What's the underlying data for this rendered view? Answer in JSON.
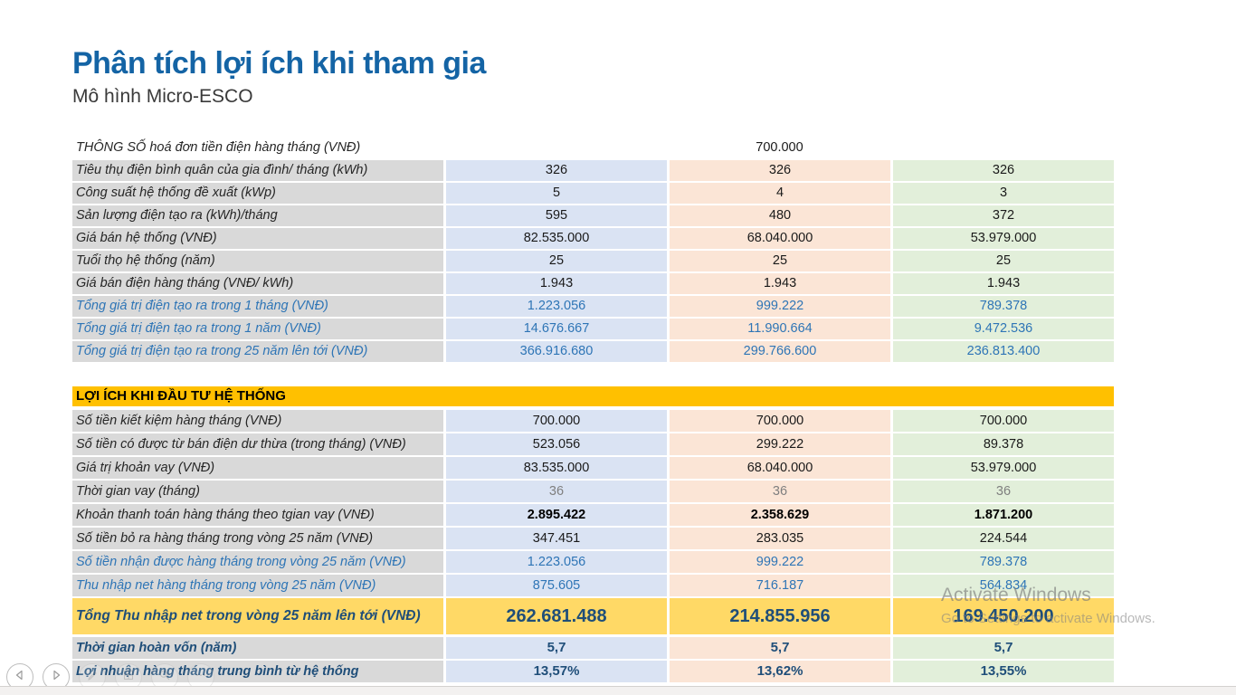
{
  "slide": {
    "title": "Phân tích lợi ích khi tham gia",
    "subtitle": "Mô hình Micro-ESCO"
  },
  "colors": {
    "title_blue": "#1464a5",
    "label_gray_bg": "#d9d9d9",
    "column1_blue_bg": "#dae3f3",
    "column2_orange_bg": "#fbe5d6",
    "column3_green_bg": "#e2efda",
    "section_header_bg": "#ffc000",
    "total_row_bg": "#ffd966",
    "blue_text": "#2e75b6",
    "navy_text": "#1f4e79",
    "gray_text": "#7f7f7f"
  },
  "table": {
    "rows": [
      {
        "type": "merged",
        "label": "THÔNG SỐ hoá đơn tiền điện hàng tháng (VNĐ)",
        "value": "700.000"
      },
      {
        "type": "param",
        "style": "normal",
        "label": "Tiêu thụ điện bình quân của gia đình/ tháng (kWh)",
        "values": [
          "326",
          "326",
          "326"
        ]
      },
      {
        "type": "param",
        "style": "normal",
        "label": "Công suất hệ thống đề xuất (kWp)",
        "values": [
          "5",
          "4",
          "3"
        ]
      },
      {
        "type": "param",
        "style": "normal",
        "label": "Sản lượng điện tạo ra (kWh)/tháng",
        "values": [
          "595",
          "480",
          "372"
        ]
      },
      {
        "type": "param",
        "style": "normal",
        "label": "Giá bán hệ thống (VNĐ)",
        "values": [
          "82.535.000",
          "68.040.000",
          "53.979.000"
        ]
      },
      {
        "type": "param",
        "style": "normal",
        "label": "Tuổi thọ hệ thống (năm)",
        "values": [
          "25",
          "25",
          "25"
        ]
      },
      {
        "type": "param",
        "style": "normal",
        "label": "Giá bán điện hàng tháng (VNĐ/ kWh)",
        "values": [
          "1.943",
          "1.943",
          "1.943"
        ]
      },
      {
        "type": "param",
        "style": "blue",
        "label": "Tổng giá trị điện tạo ra trong 1 tháng (VNĐ)",
        "values": [
          "1.223.056",
          "999.222",
          "789.378"
        ]
      },
      {
        "type": "param",
        "style": "blue",
        "label": "Tổng giá trị điện tạo ra trong 1 năm (VNĐ)",
        "values": [
          "14.676.667",
          "11.990.664",
          "9.472.536"
        ]
      },
      {
        "type": "param",
        "style": "blue",
        "label": "Tổng giá trị điện tạo ra trong 25 năm lên tới (VNĐ)",
        "values": [
          "366.916.680",
          "299.766.600",
          "236.813.400"
        ]
      },
      {
        "type": "header",
        "label": "LỢI ÍCH KHI ĐẦU TƯ  HỆ THỐNG"
      },
      {
        "type": "param",
        "style": "normal",
        "label": "Số tiền kiết kiệm hàng tháng (VNĐ)",
        "values": [
          "700.000",
          "700.000",
          "700.000"
        ]
      },
      {
        "type": "param",
        "style": "normal",
        "label": "Số tiền có được từ bán điện dư thừa (trong tháng) (VNĐ)",
        "values": [
          "523.056",
          "299.222",
          "89.378"
        ]
      },
      {
        "type": "param",
        "style": "normal",
        "label": "Giá trị khoản vay (VNĐ)",
        "values": [
          "83.535.000",
          "68.040.000",
          "53.979.000"
        ]
      },
      {
        "type": "param",
        "style": "grayval",
        "label": "Thời gian vay (tháng)",
        "values": [
          "36",
          "36",
          "36"
        ]
      },
      {
        "type": "param",
        "style": "boldblack",
        "label": "Khoản thanh toán hàng tháng theo tgian vay (VNĐ)",
        "values": [
          "2.895.422",
          "2.358.629",
          "1.871.200"
        ]
      },
      {
        "type": "param",
        "style": "normal",
        "label": "Số tiền bỏ ra hàng tháng trong vòng 25 năm (VNĐ)",
        "values": [
          "347.451",
          "283.035",
          "224.544"
        ]
      },
      {
        "type": "param",
        "style": "blue",
        "label": "Số tiền nhận được hàng tháng trong vòng 25 năm (VNĐ)",
        "values": [
          "1.223.056",
          "999.222",
          "789.378"
        ]
      },
      {
        "type": "param",
        "style": "blue",
        "label": "Thu nhập net hàng tháng trong vòng 25 năm (VNĐ)",
        "values": [
          "875.605",
          "716.187",
          "564.834"
        ]
      },
      {
        "type": "total",
        "label": "Tổng Thu nhập net trong vòng 25 năm lên tới (VNĐ)",
        "values": [
          "262.681.488",
          "214.855.956",
          "169.450.200"
        ]
      },
      {
        "type": "param",
        "style": "navybold",
        "label": "Thời gian hoàn vốn (năm)",
        "values": [
          "5,7",
          "5,7",
          "5,7"
        ]
      },
      {
        "type": "param",
        "style": "navybold",
        "label": "Lợi nhuận hàng tháng trung bình từ hệ thống",
        "values": [
          "13,57%",
          "13,62%",
          "13,55%"
        ]
      }
    ]
  },
  "watermark": {
    "line1": "Activate Windows",
    "line2": "Go to Settings to activate Windows."
  },
  "presenter_toolbar": {
    "buttons": [
      "previous-slide",
      "next-slide",
      "pen-tool",
      "all-slides",
      "zoom-tool",
      "more-options"
    ]
  }
}
